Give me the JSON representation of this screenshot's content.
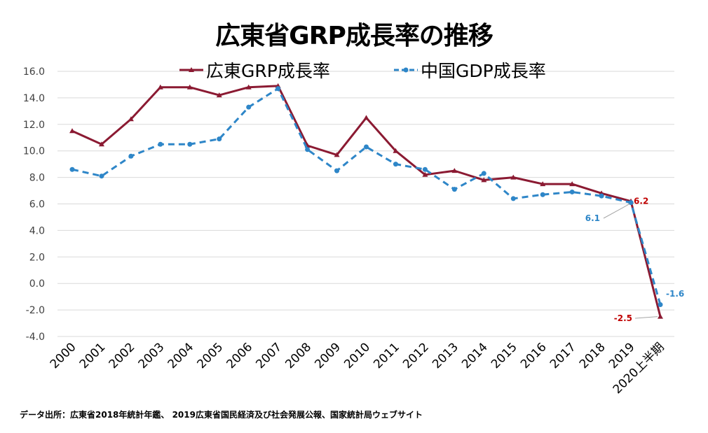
{
  "chart_data": {
    "type": "line",
    "title": "広東省GRP成長率の推移",
    "categories": [
      "2000",
      "2001",
      "2002",
      "2003",
      "2004",
      "2005",
      "2006",
      "2007",
      "2008",
      "2009",
      "2010",
      "2011",
      "2012",
      "2013",
      "2014",
      "2015",
      "2016",
      "2017",
      "2018",
      "2019",
      "2020上半期"
    ],
    "ylim": [
      -4.0,
      16.0
    ],
    "yticks": [
      "16.0",
      "14.0",
      "12.0",
      "10.0",
      "8.0",
      "6.0",
      "4.0",
      "2.0",
      "0.0",
      "-2.0",
      "-4.0"
    ],
    "ytick_values": [
      16,
      14,
      12,
      10,
      8,
      6,
      4,
      2,
      0,
      -2,
      -4
    ],
    "grid": true,
    "legend_position": "top",
    "series": [
      {
        "name": "広東GRP成長率",
        "color": "#8B1A32",
        "style": "solid",
        "marker": "triangle",
        "values": [
          11.5,
          10.5,
          12.4,
          14.8,
          14.8,
          14.2,
          14.8,
          14.9,
          10.4,
          9.7,
          12.5,
          10.0,
          8.2,
          8.5,
          7.8,
          8.0,
          7.5,
          7.5,
          6.8,
          6.2,
          -2.5
        ]
      },
      {
        "name": "中国GDP成長率",
        "color": "#2E86C8",
        "style": "dashed",
        "marker": "circle",
        "values": [
          8.6,
          8.1,
          9.6,
          10.5,
          10.5,
          10.9,
          13.3,
          14.7,
          10.1,
          8.5,
          10.3,
          9.0,
          8.6,
          7.1,
          8.3,
          6.4,
          6.7,
          6.9,
          6.6,
          6.1,
          -1.6
        ]
      }
    ],
    "annotations": [
      {
        "text": "6.2",
        "series": 0,
        "index": 19,
        "color": "#C00000"
      },
      {
        "text": "6.1",
        "series": 1,
        "index": 19,
        "color": "#2E86C8"
      },
      {
        "text": "-2.5",
        "series": 0,
        "index": 20,
        "color": "#C00000"
      },
      {
        "text": "-1.6",
        "series": 1,
        "index": 20,
        "color": "#2E86C8"
      }
    ]
  },
  "source_note": "データ出所：広東省2018年統計年鑑、 2019広東省国民経済及び社会発展公報、国家統計局ウェブサイト"
}
